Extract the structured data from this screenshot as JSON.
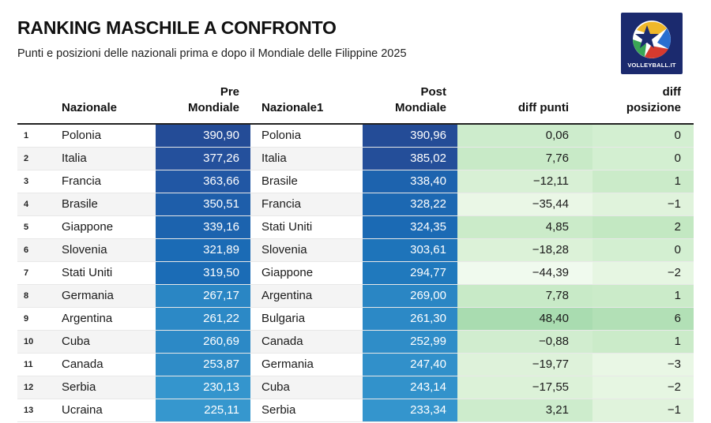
{
  "title": "RANKING MASCHILE A CONFRONTO",
  "subtitle": "Punti e posizioni delle nazionali prima e dopo il Mondiale delle Filippine 2025",
  "logo": {
    "text": "VOLLEYBALL.IT",
    "icon": "volleyball-star-logo-icon",
    "bg_color": "#1b2a6e"
  },
  "columns": {
    "nazionale": "Nazionale",
    "pre_line1": "Pre",
    "pre_line2": "Mondiale",
    "nazionale1": "Nazionale1",
    "post_line1": "Post",
    "post_line2": "Mondiale",
    "diff_punti": "diff punti",
    "diff_pos_line1": "diff",
    "diff_pos_line2": "posizione"
  },
  "rows": [
    {
      "rank": "1",
      "nazionale": "Polonia",
      "pre": "390,90",
      "nazionale1": "Polonia",
      "post": "390,96",
      "diff_punti": "0,06",
      "diff_posizione": "0",
      "pre_color": "#244c97",
      "post_color": "#244c97",
      "dp_color": "#cdeccc",
      "dpos_color": "#d3efd1"
    },
    {
      "rank": "2",
      "nazionale": "Italia",
      "pre": "377,26",
      "nazionale1": "Italia",
      "post": "385,02",
      "diff_punti": "7,76",
      "diff_posizione": "0",
      "pre_color": "#24509c",
      "post_color": "#244e99",
      "dp_color": "#c8eac7",
      "dpos_color": "#d3efd1"
    },
    {
      "rank": "3",
      "nazionale": "Francia",
      "pre": "363,66",
      "nazionale1": "Brasile",
      "post": "338,40",
      "diff_punti": "−12,11",
      "diff_posizione": "1",
      "pre_color": "#2157a4",
      "post_color": "#1d63ae",
      "dp_color": "#d8f0d5",
      "dpos_color": "#cbebc9"
    },
    {
      "rank": "4",
      "nazionale": "Brasile",
      "pre": "350,51",
      "nazionale1": "Francia",
      "post": "328,22",
      "diff_punti": "−35,44",
      "diff_posizione": "−1",
      "pre_color": "#1e5eaa",
      "post_color": "#1c68b2",
      "dp_color": "#eaf7e6",
      "dpos_color": "#e0f3dc"
    },
    {
      "rank": "5",
      "nazionale": "Giappone",
      "pre": "339,16",
      "nazionale1": "Stati Uniti",
      "post": "324,35",
      "diff_punti": "4,85",
      "diff_posizione": "2",
      "pre_color": "#1c63ae",
      "post_color": "#1b6ab4",
      "dp_color": "#cbebc9",
      "dpos_color": "#c3e8c2"
    },
    {
      "rank": "6",
      "nazionale": "Slovenia",
      "pre": "321,89",
      "nazionale1": "Slovenia",
      "post": "303,61",
      "diff_punti": "−18,28",
      "diff_posizione": "0",
      "pre_color": "#1b6bb5",
      "post_color": "#1e74ba",
      "dp_color": "#dcf2d8",
      "dpos_color": "#d3efd1"
    },
    {
      "rank": "7",
      "nazionale": "Stati Uniti",
      "pre": "319,50",
      "nazionale1": "Giappone",
      "post": "294,77",
      "diff_punti": "−44,39",
      "diff_posizione": "−2",
      "pre_color": "#1b6cb6",
      "post_color": "#2079bd",
      "dp_color": "#f0faee",
      "dpos_color": "#e6f6e2"
    },
    {
      "rank": "8",
      "nazionale": "Germania",
      "pre": "267,17",
      "nazionale1": "Argentina",
      "post": "269,00",
      "diff_punti": "7,78",
      "diff_posizione": "1",
      "pre_color": "#2a86c4",
      "post_color": "#2a86c4",
      "dp_color": "#c8eac7",
      "dpos_color": "#cbebc9"
    },
    {
      "rank": "9",
      "nazionale": "Argentina",
      "pre": "261,22",
      "nazionale1": "Bulgaria",
      "post": "261,30",
      "diff_punti": "48,40",
      "diff_posizione": "6",
      "pre_color": "#2c89c6",
      "post_color": "#2c89c6",
      "dp_color": "#a9dcb0",
      "dpos_color": "#b2e0b6"
    },
    {
      "rank": "10",
      "nazionale": "Cuba",
      "pre": "260,69",
      "nazionale1": "Canada",
      "post": "252,99",
      "diff_punti": "−0,88",
      "diff_posizione": "1",
      "pre_color": "#2c89c6",
      "post_color": "#2f8dc8",
      "dp_color": "#d1edcf",
      "dpos_color": "#cbebc9"
    },
    {
      "rank": "11",
      "nazionale": "Canada",
      "pre": "253,87",
      "nazionale1": "Germania",
      "post": "247,40",
      "diff_punti": "−19,77",
      "diff_posizione": "−3",
      "pre_color": "#2f8cc7",
      "post_color": "#3190ca",
      "dp_color": "#def2da",
      "dpos_color": "#e9f7e5"
    },
    {
      "rank": "12",
      "nazionale": "Serbia",
      "pre": "230,13",
      "nazionale1": "Cuba",
      "post": "243,14",
      "diff_punti": "−17,55",
      "diff_posizione": "−2",
      "pre_color": "#3495cd",
      "post_color": "#3292cb",
      "dp_color": "#dcf2d8",
      "dpos_color": "#e6f6e2"
    },
    {
      "rank": "13",
      "nazionale": "Ucraina",
      "pre": "225,11",
      "nazionale1": "Serbia",
      "post": "233,34",
      "diff_punti": "3,21",
      "diff_posizione": "−1",
      "pre_color": "#3697ce",
      "post_color": "#3495cd",
      "dp_color": "#cdeccc",
      "dpos_color": "#e0f3dc"
    }
  ]
}
